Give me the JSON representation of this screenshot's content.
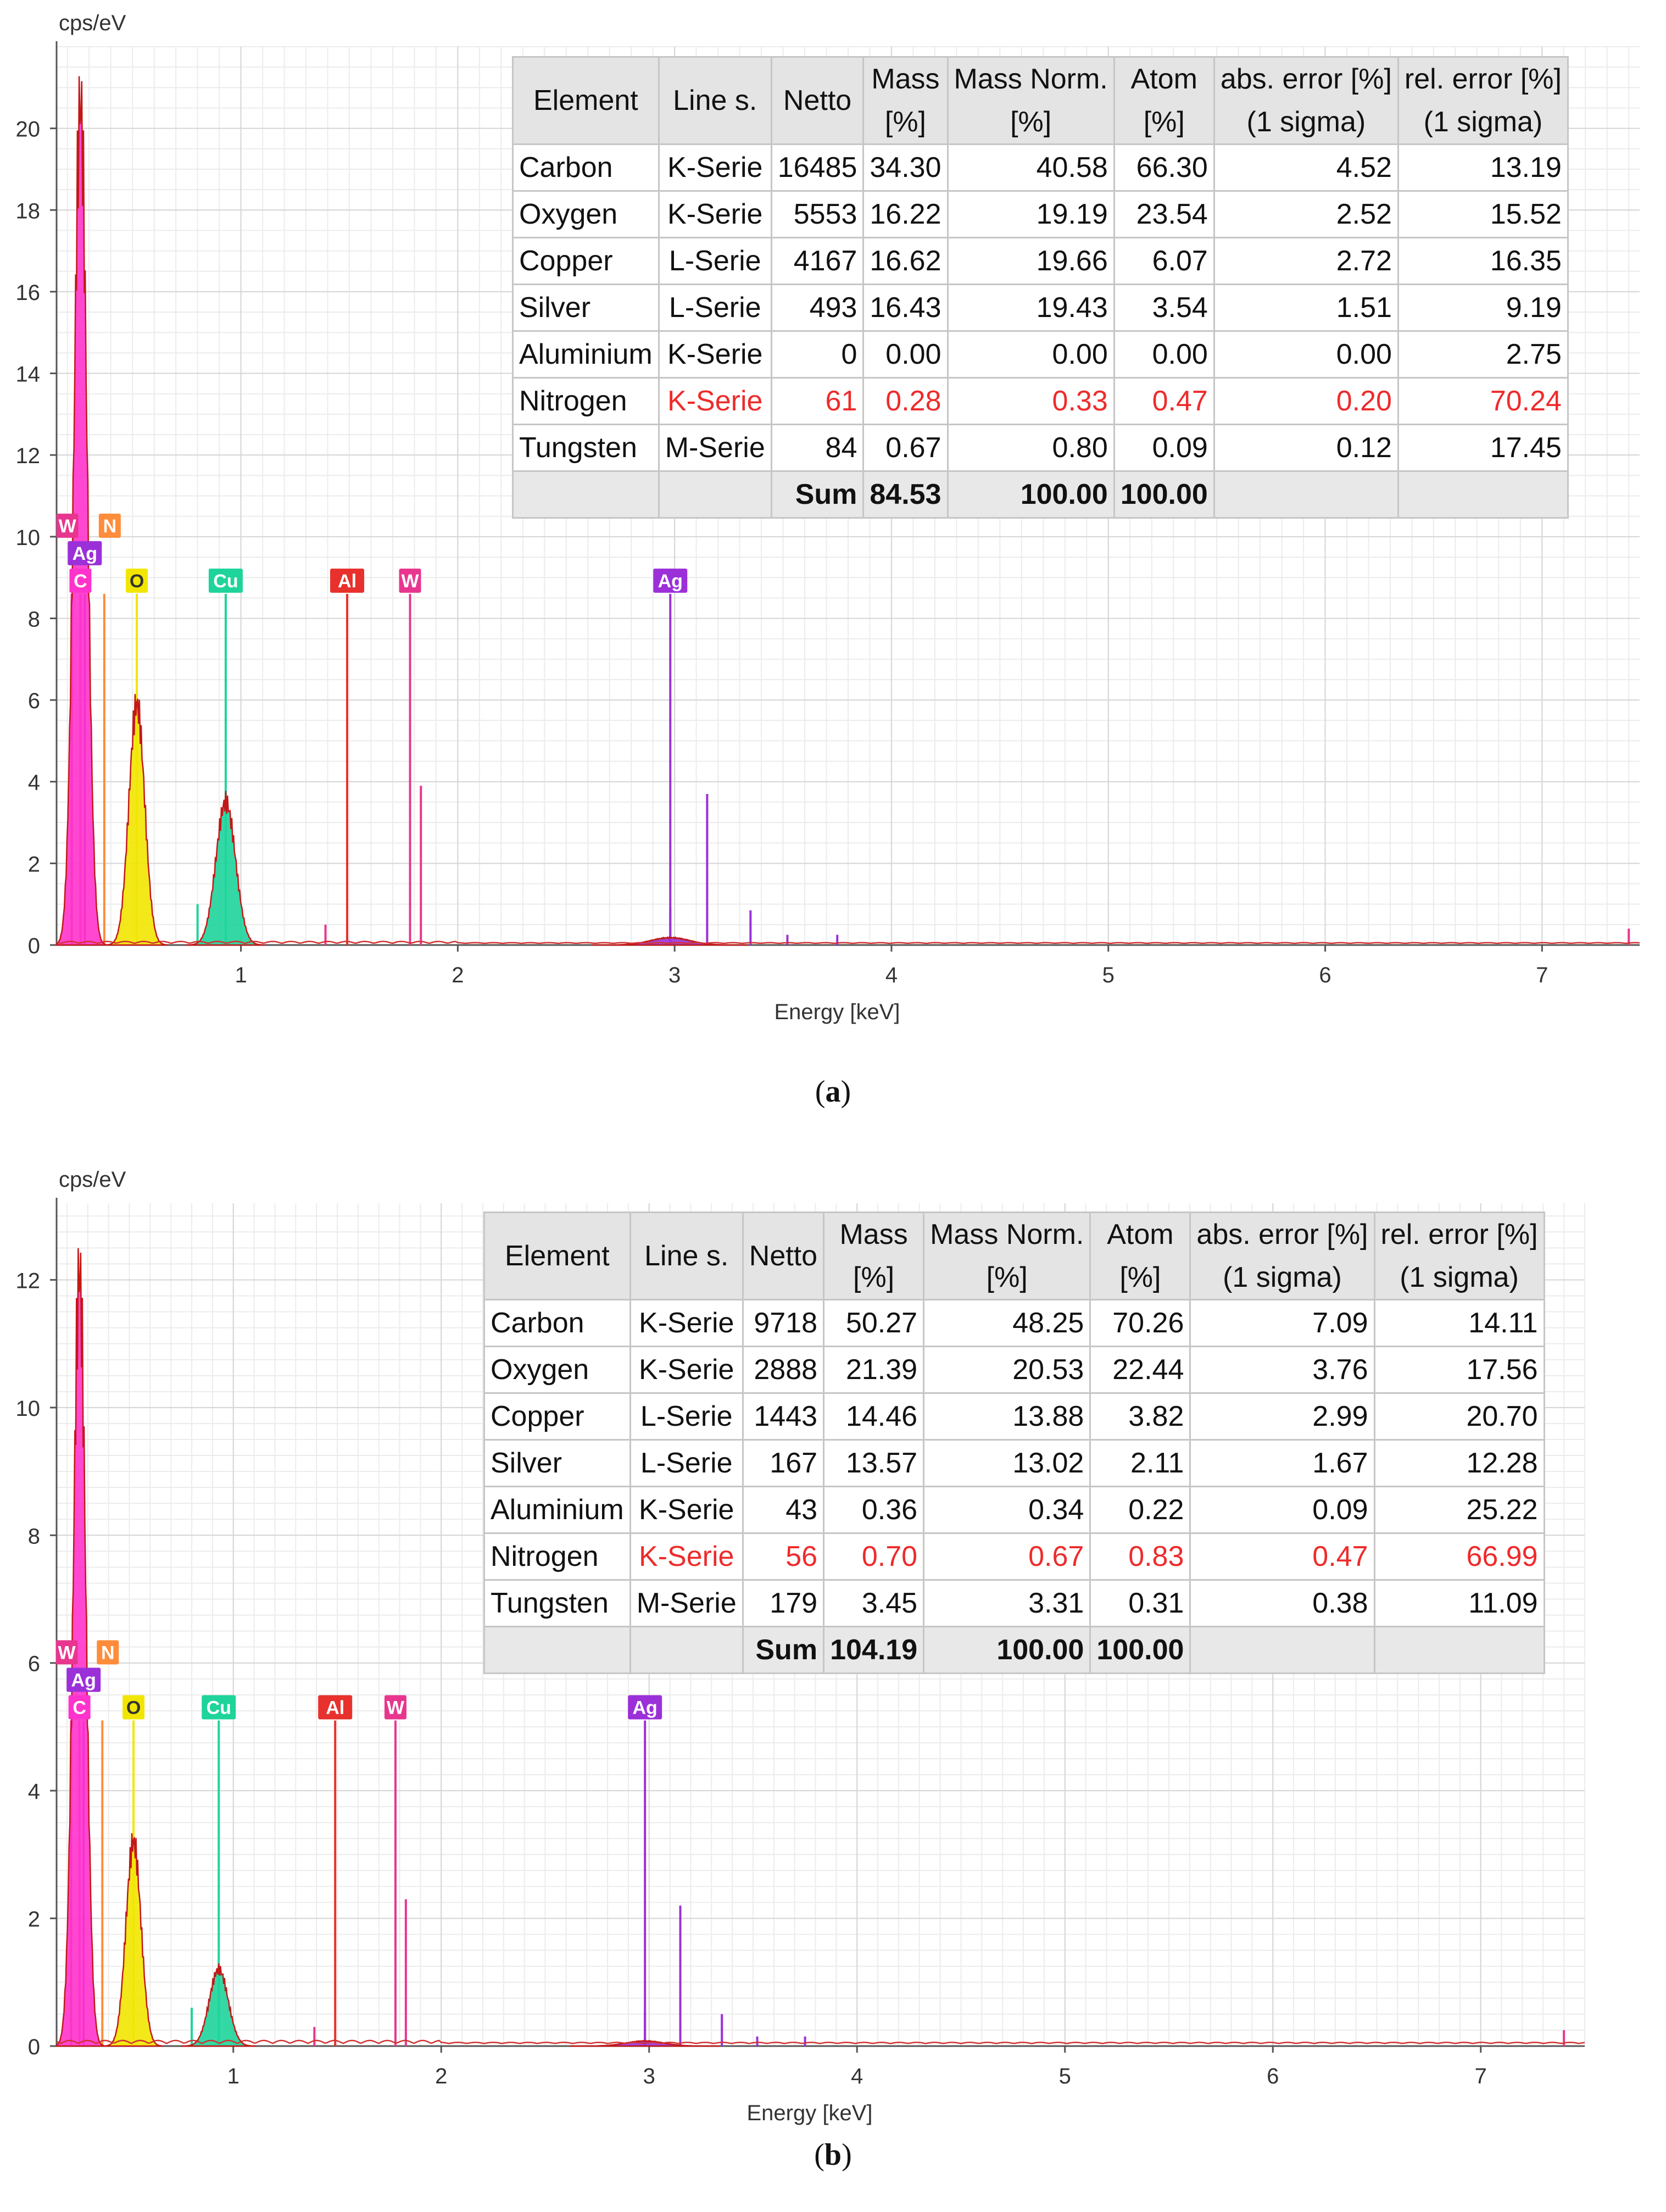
{
  "figure": {
    "panels": [
      {
        "caption_label": "a",
        "table": {
          "headers": [
            [
              "Element"
            ],
            [
              "Line s."
            ],
            [
              "Netto"
            ],
            [
              "Mass",
              "[%]"
            ],
            [
              "Mass Norm.",
              "[%]"
            ],
            [
              "Atom",
              "[%]"
            ],
            [
              "abs. error [%]",
              "(1 sigma)"
            ],
            [
              "rel. error [%]",
              "(1 sigma)"
            ]
          ],
          "rows": [
            {
              "element": "Carbon",
              "line": "K-Serie",
              "netto": "16485",
              "mass": "34.30",
              "mass_norm": "40.58",
              "atom": "66.30",
              "abs_error": "4.52",
              "rel_error": "13.19",
              "warn": false
            },
            {
              "element": "Oxygen",
              "line": "K-Serie",
              "netto": "5553",
              "mass": "16.22",
              "mass_norm": "19.19",
              "atom": "23.54",
              "abs_error": "2.52",
              "rel_error": "15.52",
              "warn": false
            },
            {
              "element": "Copper",
              "line": "L-Serie",
              "netto": "4167",
              "mass": "16.62",
              "mass_norm": "19.66",
              "atom": "6.07",
              "abs_error": "2.72",
              "rel_error": "16.35",
              "warn": false
            },
            {
              "element": "Silver",
              "line": "L-Serie",
              "netto": "493",
              "mass": "16.43",
              "mass_norm": "19.43",
              "atom": "3.54",
              "abs_error": "1.51",
              "rel_error": "9.19",
              "warn": false
            },
            {
              "element": "Aluminium",
              "line": "K-Serie",
              "netto": "0",
              "mass": "0.00",
              "mass_norm": "0.00",
              "atom": "0.00",
              "abs_error": "0.00",
              "rel_error": "2.75",
              "warn": false
            },
            {
              "element": "Nitrogen",
              "line": "K-Serie",
              "netto": "61",
              "mass": "0.28",
              "mass_norm": "0.33",
              "atom": "0.47",
              "abs_error": "0.20",
              "rel_error": "70.24",
              "warn": true
            },
            {
              "element": "Tungsten",
              "line": "M-Serie",
              "netto": "84",
              "mass": "0.67",
              "mass_norm": "0.80",
              "atom": "0.09",
              "abs_error": "0.12",
              "rel_error": "17.45",
              "warn": false
            }
          ],
          "sum": {
            "label": "Sum",
            "mass": "84.53",
            "mass_norm": "100.00",
            "atom": "100.00"
          }
        }
      },
      {
        "caption_label": "b",
        "table": {
          "headers": [
            [
              "Element"
            ],
            [
              "Line s."
            ],
            [
              "Netto"
            ],
            [
              "Mass",
              "[%]"
            ],
            [
              "Mass Norm.",
              "[%]"
            ],
            [
              "Atom",
              "[%]"
            ],
            [
              "abs. error [%]",
              "(1 sigma)"
            ],
            [
              "rel. error [%]",
              "(1 sigma)"
            ]
          ],
          "rows": [
            {
              "element": "Carbon",
              "line": "K-Serie",
              "netto": "9718",
              "mass": "50.27",
              "mass_norm": "48.25",
              "atom": "70.26",
              "abs_error": "7.09",
              "rel_error": "14.11",
              "warn": false
            },
            {
              "element": "Oxygen",
              "line": "K-Serie",
              "netto": "2888",
              "mass": "21.39",
              "mass_norm": "20.53",
              "atom": "22.44",
              "abs_error": "3.76",
              "rel_error": "17.56",
              "warn": false
            },
            {
              "element": "Copper",
              "line": "L-Serie",
              "netto": "1443",
              "mass": "14.46",
              "mass_norm": "13.88",
              "atom": "3.82",
              "abs_error": "2.99",
              "rel_error": "20.70",
              "warn": false
            },
            {
              "element": "Silver",
              "line": "L-Serie",
              "netto": "167",
              "mass": "13.57",
              "mass_norm": "13.02",
              "atom": "2.11",
              "abs_error": "1.67",
              "rel_error": "12.28",
              "warn": false
            },
            {
              "element": "Aluminium",
              "line": "K-Serie",
              "netto": "43",
              "mass": "0.36",
              "mass_norm": "0.34",
              "atom": "0.22",
              "abs_error": "0.09",
              "rel_error": "25.22",
              "warn": false
            },
            {
              "element": "Nitrogen",
              "line": "K-Serie",
              "netto": "56",
              "mass": "0.70",
              "mass_norm": "0.67",
              "atom": "0.83",
              "abs_error": "0.47",
              "rel_error": "66.99",
              "warn": true
            },
            {
              "element": "Tungsten",
              "line": "M-Serie",
              "netto": "179",
              "mass": "3.45",
              "mass_norm": "3.31",
              "atom": "0.31",
              "abs_error": "0.38",
              "rel_error": "11.09",
              "warn": false
            }
          ],
          "sum": {
            "label": "Sum",
            "mass": "104.19",
            "mass_norm": "100.00",
            "atom": "100.00"
          }
        }
      }
    ]
  },
  "chart_data": [
    {
      "type": "line",
      "title": "",
      "ylabel": "cps/eV",
      "xlabel": "Energy [keV]",
      "xlim": [
        0.15,
        7.45
      ],
      "ylim": [
        0,
        22
      ],
      "x_ticks": [
        1,
        2,
        3,
        4,
        5,
        6,
        7
      ],
      "y_ticks": [
        0,
        2,
        4,
        6,
        8,
        10,
        12,
        14,
        16,
        18,
        20
      ],
      "grid": true,
      "element_markers": [
        {
          "label": "W",
          "color": "#e8368f",
          "x": 0.22,
          "row": 2
        },
        {
          "label": "N",
          "color": "#ff8c3a",
          "x": 0.37,
          "row": 2
        },
        {
          "label": "Ag",
          "color": "#9b30d9",
          "x": 0.28,
          "row": 1
        },
        {
          "label": "C",
          "color": "#ff33cc",
          "x": 0.26,
          "row": 0
        },
        {
          "label": "O",
          "color": "#f2e600",
          "x": 0.52,
          "row": 0
        },
        {
          "label": "Cu",
          "color": "#1ed49a",
          "x": 0.93,
          "row": 0
        },
        {
          "label": "Al",
          "color": "#e8312d",
          "x": 1.49,
          "row": 0
        },
        {
          "label": "W",
          "color": "#e8368f",
          "x": 1.78,
          "row": 0
        },
        {
          "label": "Ag",
          "color": "#9b30d9",
          "x": 2.98,
          "row": 0
        }
      ],
      "marker_line_height": 8.6,
      "series": [
        {
          "name": "C",
          "color": "#ff33cc",
          "center": 0.26,
          "sigma": 0.03,
          "height": 20.6
        },
        {
          "name": "O",
          "color": "#f2e600",
          "center": 0.52,
          "sigma": 0.036,
          "height": 5.9
        },
        {
          "name": "Cu",
          "color": "#1ed49a",
          "center": 0.93,
          "sigma": 0.045,
          "height": 3.5
        },
        {
          "name": "Ag",
          "color": "#9b30d9",
          "center": 2.98,
          "sigma": 0.09,
          "height": 0.18
        }
      ],
      "extra_lines": [
        {
          "x": 0.22,
          "y": 8.6,
          "color": "#e8368f"
        },
        {
          "x": 0.8,
          "y": 1.0,
          "color": "#1ed49a"
        },
        {
          "x": 1.39,
          "y": 0.5,
          "color": "#e8368f"
        },
        {
          "x": 1.83,
          "y": 3.9,
          "color": "#e8368f"
        },
        {
          "x": 2.98,
          "y": 0.9,
          "color": "#9b30d9"
        },
        {
          "x": 3.15,
          "y": 3.7,
          "color": "#9b30d9"
        },
        {
          "x": 3.35,
          "y": 0.85,
          "color": "#9b30d9"
        },
        {
          "x": 3.52,
          "y": 0.25,
          "color": "#9b30d9"
        },
        {
          "x": 3.75,
          "y": 0.25,
          "color": "#9b30d9"
        },
        {
          "x": 7.4,
          "y": 0.4,
          "color": "#e8368f"
        }
      ]
    },
    {
      "type": "line",
      "title": "",
      "ylabel": "cps/eV",
      "xlabel": "Energy [keV]",
      "xlim": [
        0.15,
        7.5
      ],
      "ylim": [
        0,
        13.2
      ],
      "x_ticks": [
        1,
        2,
        3,
        4,
        5,
        6,
        7
      ],
      "y_ticks": [
        0,
        2,
        4,
        6,
        8,
        10,
        12
      ],
      "grid": true,
      "element_markers": [
        {
          "label": "W",
          "color": "#e8368f",
          "x": 0.22,
          "row": 2
        },
        {
          "label": "N",
          "color": "#ff8c3a",
          "x": 0.37,
          "row": 2
        },
        {
          "label": "Ag",
          "color": "#9b30d9",
          "x": 0.28,
          "row": 1
        },
        {
          "label": "C",
          "color": "#ff33cc",
          "x": 0.26,
          "row": 0
        },
        {
          "label": "O",
          "color": "#f2e600",
          "x": 0.52,
          "row": 0
        },
        {
          "label": "Cu",
          "color": "#1ed49a",
          "x": 0.93,
          "row": 0
        },
        {
          "label": "Al",
          "color": "#e8312d",
          "x": 1.49,
          "row": 0
        },
        {
          "label": "W",
          "color": "#e8368f",
          "x": 1.78,
          "row": 0
        },
        {
          "label": "Ag",
          "color": "#9b30d9",
          "x": 2.98,
          "row": 0
        }
      ],
      "marker_line_height": 5.1,
      "series": [
        {
          "name": "C",
          "color": "#ff33cc",
          "center": 0.26,
          "sigma": 0.03,
          "height": 12.1
        },
        {
          "name": "O",
          "color": "#f2e600",
          "center": 0.52,
          "sigma": 0.036,
          "height": 3.2
        },
        {
          "name": "Cu",
          "color": "#1ed49a",
          "center": 0.93,
          "sigma": 0.045,
          "height": 1.2
        },
        {
          "name": "Ag",
          "color": "#9b30d9",
          "center": 2.98,
          "sigma": 0.09,
          "height": 0.08
        }
      ],
      "extra_lines": [
        {
          "x": 0.22,
          "y": 5.1,
          "color": "#e8368f"
        },
        {
          "x": 0.8,
          "y": 0.6,
          "color": "#1ed49a"
        },
        {
          "x": 1.39,
          "y": 0.3,
          "color": "#e8368f"
        },
        {
          "x": 1.83,
          "y": 2.3,
          "color": "#e8368f"
        },
        {
          "x": 2.98,
          "y": 0.55,
          "color": "#9b30d9"
        },
        {
          "x": 3.15,
          "y": 2.2,
          "color": "#9b30d9"
        },
        {
          "x": 3.35,
          "y": 0.5,
          "color": "#9b30d9"
        },
        {
          "x": 3.52,
          "y": 0.15,
          "color": "#9b30d9"
        },
        {
          "x": 3.75,
          "y": 0.15,
          "color": "#9b30d9"
        },
        {
          "x": 7.4,
          "y": 0.25,
          "color": "#e8368f"
        }
      ]
    }
  ]
}
